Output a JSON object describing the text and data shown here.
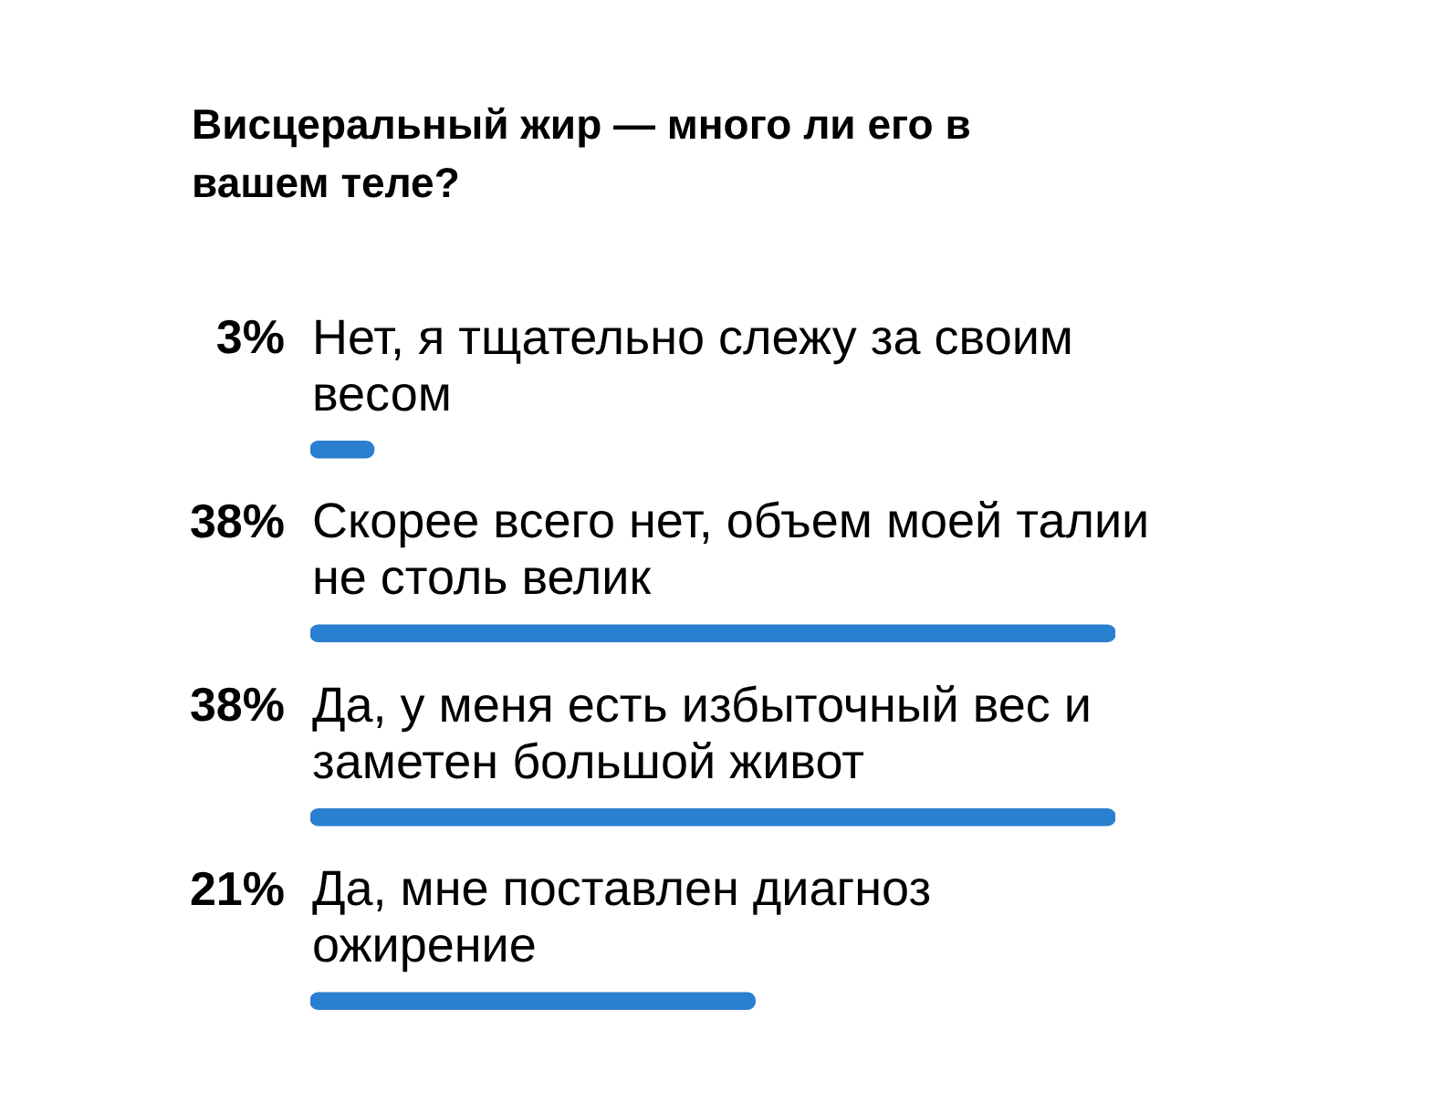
{
  "chart_data": {
    "type": "bar",
    "orientation": "horizontal",
    "title": "Висцеральный жир — много ли его в вашем теле?",
    "categories": [
      "Нет, я тщательно слежу за своим весом",
      "Скорее всего нет, объем моей талии не столь велик",
      "Да, у меня есть избыточный вес и заметен большой живот",
      "Да, мне поставлен диагноз ожирение"
    ],
    "values": [
      3,
      38,
      38,
      21
    ],
    "value_labels": [
      "3%",
      "38%",
      "38%",
      "21%"
    ],
    "color": "#2b7fd0",
    "tick_labels": "y"
  }
}
